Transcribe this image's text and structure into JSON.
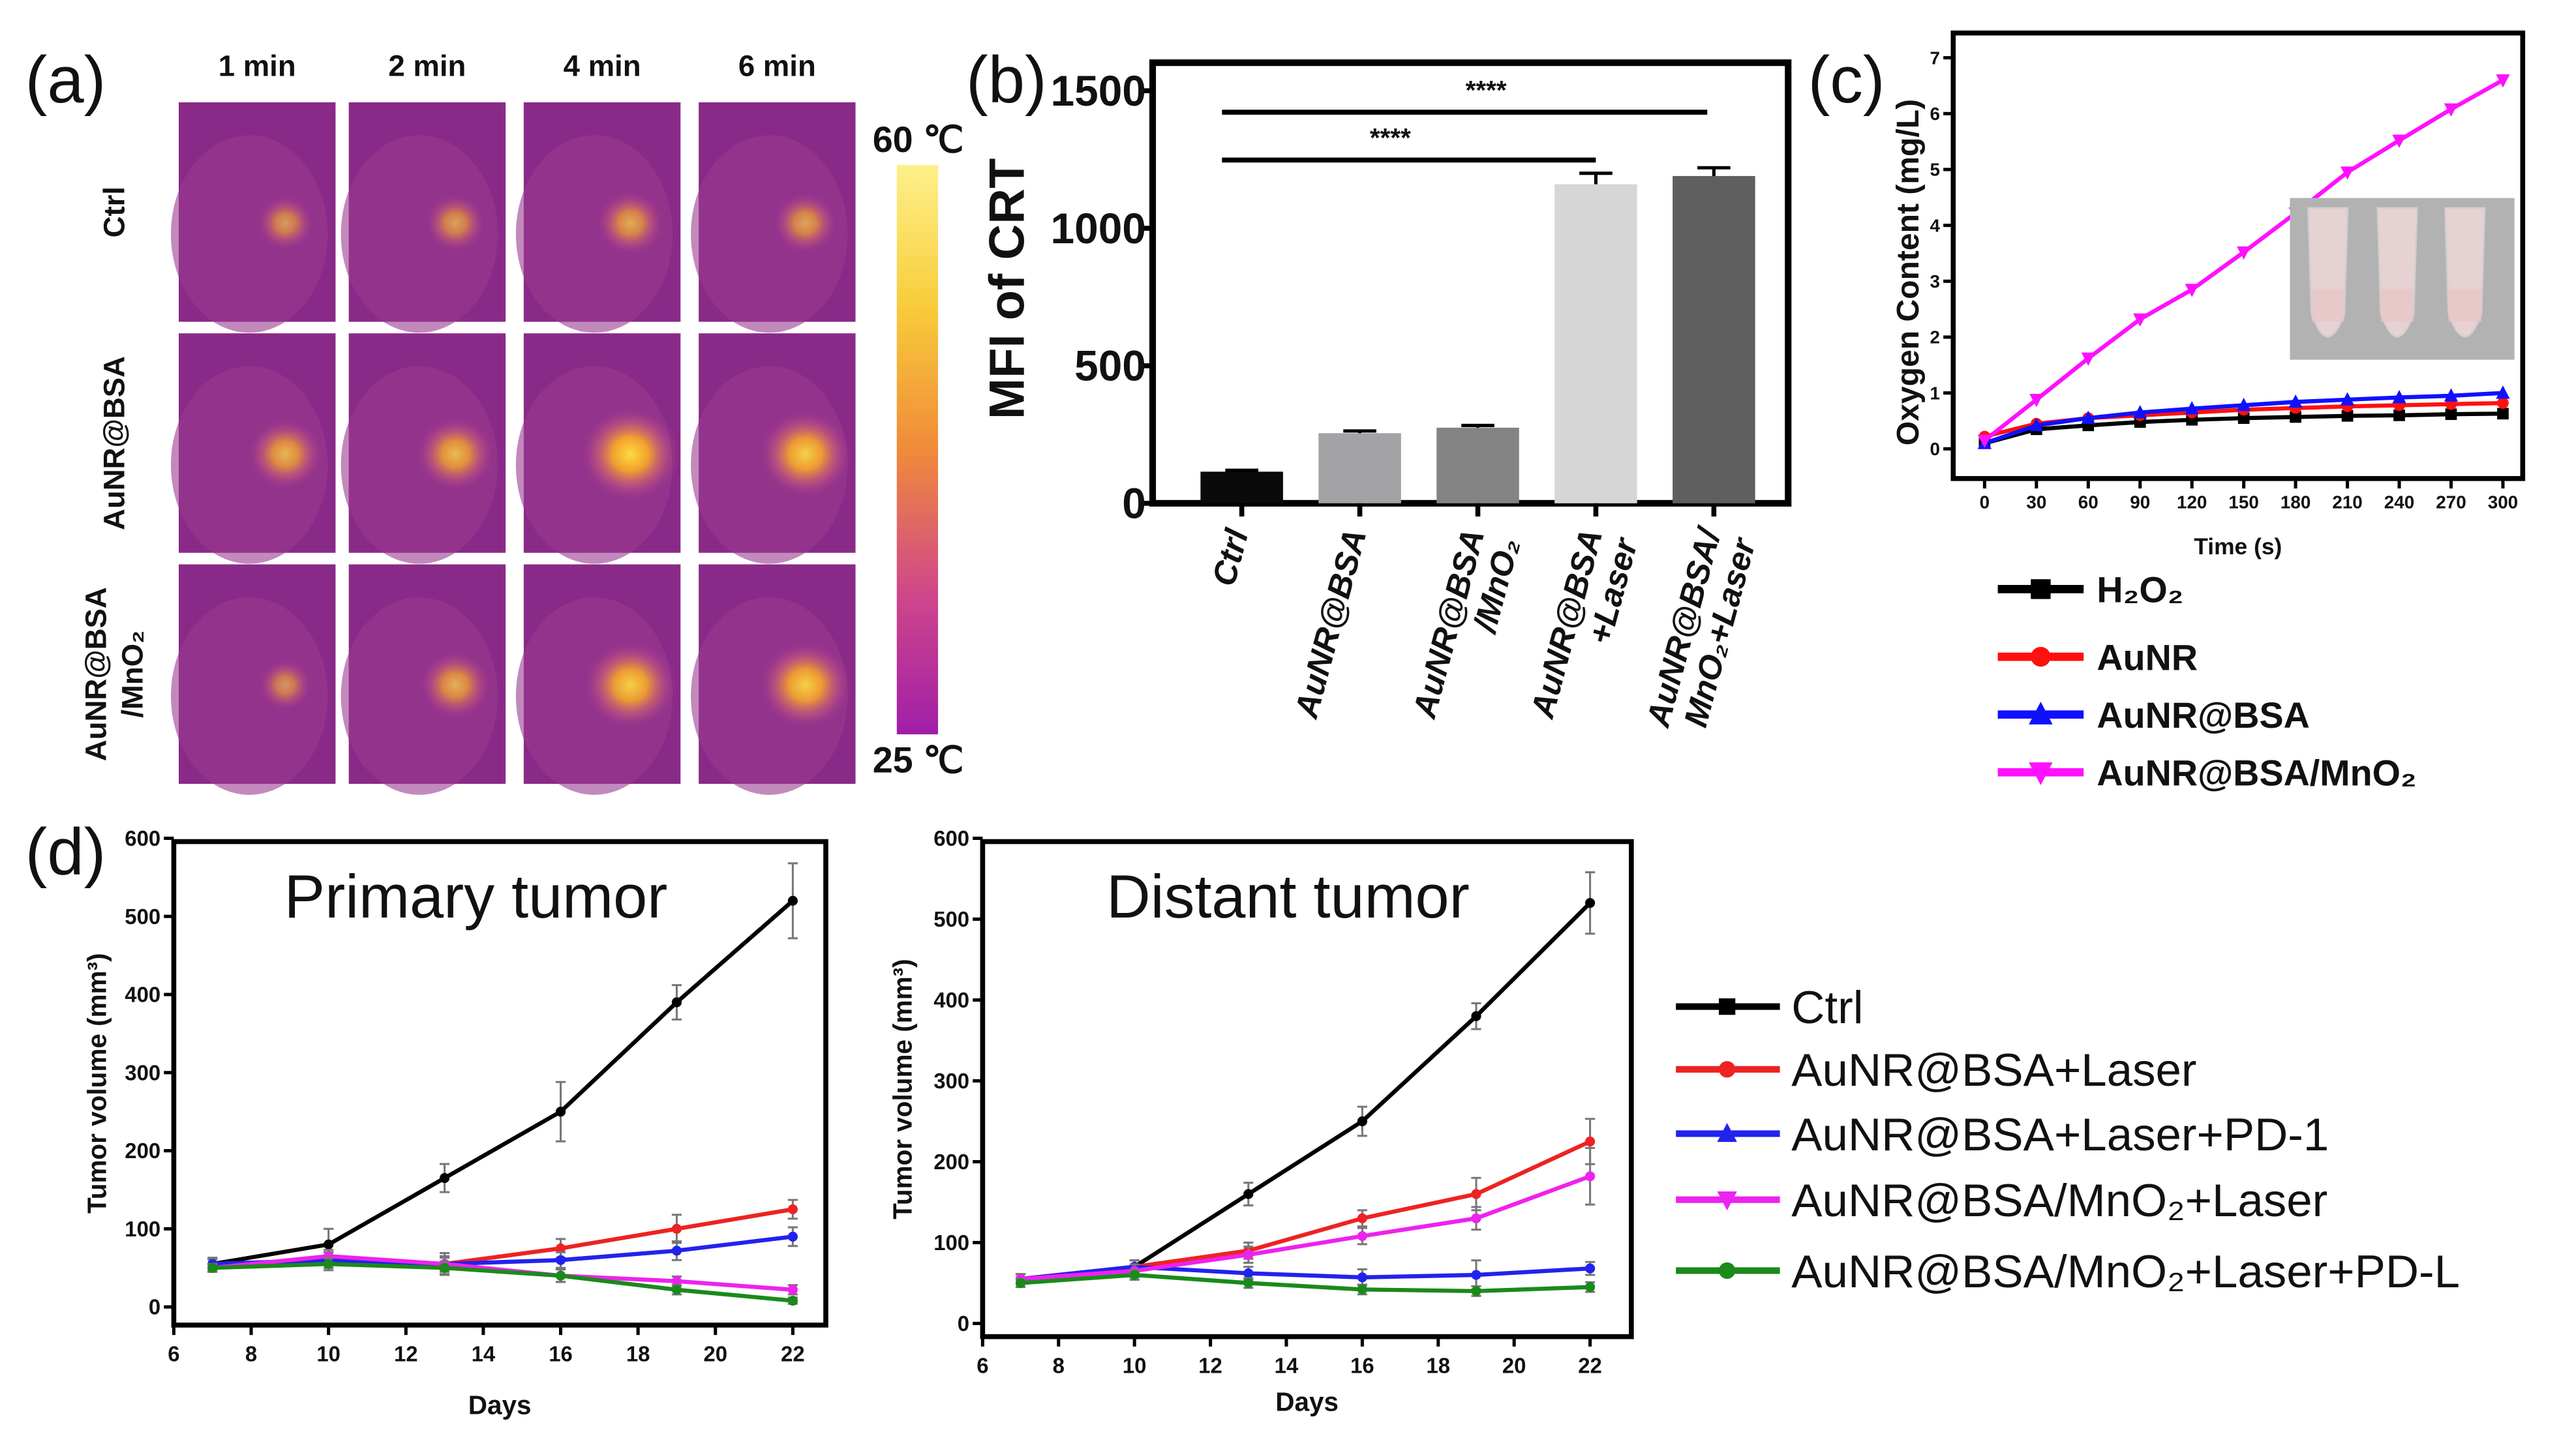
{
  "panel_labels": [
    "(a)",
    "(b)",
    "(c)",
    "(d)"
  ],
  "thermal": {
    "columns": [
      "1 min",
      "2 min",
      "4 min",
      "6 min"
    ],
    "rows": [
      [
        "Ctrl"
      ],
      [
        "AuNR@BSA"
      ],
      [
        "AuNR@BSA",
        "/MnO₂"
      ]
    ],
    "colorbar_max": "60 ℃",
    "colorbar_min": "25 ℃",
    "colors": {
      "low": "#a01ea8",
      "mid": "#f08a3a",
      "high": "#fdf08a",
      "background": "#8a2a88"
    }
  },
  "chart_data": [
    {
      "id": "b",
      "type": "bar",
      "title": "",
      "ylabel": "MFI of CRT",
      "xlabel": "",
      "ylim": [
        0,
        1600
      ],
      "yticks": [
        "0",
        "500",
        "1000",
        "1500"
      ],
      "ytick_values": [
        0,
        500,
        1000,
        1500
      ],
      "categories": [
        [
          "Ctrl"
        ],
        [
          "AuNR@BSA"
        ],
        [
          "AuNR@BSA",
          "/MnO₂"
        ],
        [
          "AuNR@BSA",
          "+Laser"
        ],
        [
          "AuNR@BSA/",
          "MnO₂+Laser"
        ]
      ],
      "values": [
        115,
        255,
        275,
        1160,
        1190
      ],
      "errors": [
        5,
        8,
        8,
        40,
        30
      ],
      "colors": [
        "#0a0a0a",
        "#a3a3a6",
        "#838383",
        "#d6d6d6",
        "#5f5f5f"
      ],
      "significance": [
        {
          "from": 0,
          "to": 4,
          "label": "****"
        },
        {
          "from": 0,
          "to": 3,
          "label": "****"
        }
      ]
    },
    {
      "id": "c",
      "type": "line",
      "title": "",
      "xlabel": "Time (s)",
      "ylabel": "Oxygen Content (mg/L)",
      "xlim": [
        0,
        300
      ],
      "ylim": [
        -0.5,
        7.5
      ],
      "x": [
        0,
        30,
        60,
        90,
        120,
        150,
        180,
        210,
        240,
        270,
        300
      ],
      "xticks": [
        "0",
        "30",
        "60",
        "90",
        "120",
        "150",
        "180",
        "210",
        "240",
        "270",
        "300"
      ],
      "yticks": [
        "0",
        "1",
        "2",
        "3",
        "4",
        "5",
        "6",
        "7"
      ],
      "legend_position": "below",
      "series": [
        {
          "name": "H₂O₂",
          "color": "#000000",
          "marker": "square",
          "values": [
            0.1,
            0.35,
            0.42,
            0.48,
            0.52,
            0.55,
            0.57,
            0.59,
            0.6,
            0.62,
            0.63
          ]
        },
        {
          "name": "AuNR",
          "color": "#ff1010",
          "marker": "circle",
          "values": [
            0.22,
            0.45,
            0.55,
            0.6,
            0.65,
            0.7,
            0.73,
            0.76,
            0.78,
            0.8,
            0.82
          ]
        },
        {
          "name": "AuNR@BSA",
          "color": "#1010ff",
          "marker": "triangle-up",
          "values": [
            0.1,
            0.42,
            0.55,
            0.65,
            0.72,
            0.78,
            0.84,
            0.88,
            0.92,
            0.95,
            1.0
          ]
        },
        {
          "name": "AuNR@BSA/MnO₂",
          "color": "#ff10ff",
          "marker": "triangle-down",
          "values": [
            0.15,
            0.88,
            1.62,
            2.32,
            2.85,
            3.52,
            4.22,
            4.95,
            5.52,
            6.08,
            6.6
          ]
        }
      ]
    },
    {
      "id": "d-primary",
      "type": "line",
      "title": "Primary tumor",
      "xlabel": "Days",
      "ylabel": "Tumor volume (mm³)",
      "xlim": [
        6,
        22.8
      ],
      "ylim": [
        -25,
        600
      ],
      "x": [
        7,
        10,
        13,
        16,
        19,
        22
      ],
      "xticks": [
        "6",
        "8",
        "10",
        "12",
        "14",
        "16",
        "18",
        "20",
        "22"
      ],
      "yticks": [
        "0",
        "100",
        "200",
        "300",
        "400",
        "500",
        "600"
      ],
      "series": [
        {
          "name": "Ctrl",
          "color": "#000000",
          "values": [
            55,
            80,
            165,
            250,
            390,
            520
          ],
          "errors": [
            8,
            20,
            18,
            38,
            22,
            48
          ]
        },
        {
          "name": "AuNR@BSA+Laser",
          "color": "#ee2222",
          "values": [
            55,
            60,
            55,
            75,
            100,
            125
          ],
          "errors": [
            6,
            10,
            10,
            12,
            18,
            12
          ]
        },
        {
          "name": "AuNR@BSA+Laser+PD-1",
          "color": "#2222ee",
          "values": [
            55,
            60,
            55,
            60,
            72,
            90
          ],
          "errors": [
            6,
            10,
            14,
            10,
            12,
            12
          ]
        },
        {
          "name": "AuNR@BSA/MnO₂+Laser",
          "color": "#ee22ee",
          "values": [
            50,
            65,
            55,
            40,
            33,
            22
          ],
          "errors": [
            5,
            8,
            8,
            8,
            6,
            6
          ]
        },
        {
          "name": "AuNR@BSA/MnO₂+Laser+PD-L",
          "color": "#1a8a1a",
          "values": [
            50,
            55,
            50,
            40,
            22,
            8
          ],
          "errors": [
            5,
            8,
            8,
            8,
            6,
            4
          ]
        }
      ]
    },
    {
      "id": "d-distant",
      "type": "line",
      "title": "Distant tumor",
      "xlabel": "Days",
      "ylabel": "Tumor volume (mm³)",
      "xlim": [
        6,
        23.3
      ],
      "ylim": [
        -20,
        600
      ],
      "x": [
        7,
        10,
        13,
        16,
        19,
        22
      ],
      "xticks": [
        "6",
        "8",
        "10",
        "12",
        "14",
        "16",
        "18",
        "20",
        "22"
      ],
      "yticks": [
        "0",
        "100",
        "200",
        "300",
        "400",
        "500",
        "600"
      ],
      "legend_position": "right",
      "series": [
        {
          "name": "Ctrl",
          "color": "#000000",
          "values": [
            55,
            70,
            160,
            250,
            380,
            520
          ],
          "errors": [
            6,
            8,
            14,
            18,
            16,
            38
          ]
        },
        {
          "name": "AuNR@BSA+Laser",
          "color": "#ee2222",
          "values": [
            55,
            70,
            90,
            130,
            160,
            225
          ],
          "errors": [
            6,
            8,
            10,
            10,
            20,
            28
          ]
        },
        {
          "name": "AuNR@BSA+Laser+PD-1",
          "color": "#2222ee",
          "values": [
            55,
            70,
            62,
            57,
            60,
            68
          ],
          "errors": [
            6,
            8,
            8,
            10,
            18,
            8
          ]
        },
        {
          "name": "AuNR@BSA/MnO₂+Laser",
          "color": "#ee22ee",
          "values": [
            55,
            65,
            85,
            108,
            130,
            182
          ],
          "errors": [
            6,
            8,
            10,
            10,
            14,
            35
          ]
        },
        {
          "name": "AuNR@BSA/MnO₂+Laser+PD-L",
          "color": "#1a8a1a",
          "values": [
            50,
            60,
            50,
            42,
            40,
            45
          ],
          "errors": [
            5,
            6,
            6,
            6,
            6,
            6
          ]
        }
      ]
    }
  ]
}
